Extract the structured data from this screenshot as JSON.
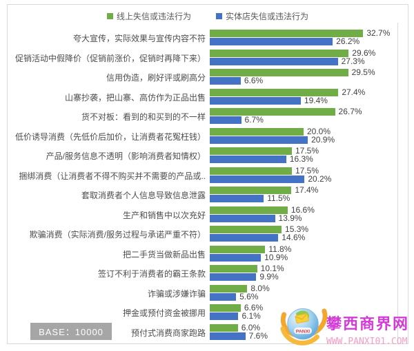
{
  "legend": [
    {
      "label": "线上失信或违法行为",
      "color": "#70AD47"
    },
    {
      "label": "实体店失信或违法行为",
      "color": "#4472C4"
    }
  ],
  "base_badge": "BASE：10000",
  "watermark": {
    "site_name": "攀西商界网",
    "url": "WWW.PANXI01.COM",
    "logo_text": "PANXI",
    "site_name_color": "#d43ad8",
    "url_color": "#f59ec5"
  },
  "chart_data": {
    "type": "bar",
    "orientation": "horizontal",
    "title": "",
    "xlabel": "",
    "ylabel": "",
    "xlim": [
      0,
      40
    ],
    "grid": "right-edge-only",
    "legend_position": "top",
    "value_suffix": "%",
    "categories": [
      "夸大宣传，实际效果与宣传内容不符",
      "促销活动中假降价（促销前涨价，促销时再降下来）",
      "信用伪造，刷好评或刷高分",
      "山寨抄袭，把山寨、高仿作为正品出售",
      "货不对板：看到的和买到的不一样",
      "低价诱导消费（先低价后加价，让消费者花冤枉钱）",
      "产品/服务信息不透明（影响消费者知情权）",
      "捆绑消费（让消费者不得不购买并不需要的产品或..",
      "套取消费者个人信息导致信息泄露",
      "生产和销售中以次充好",
      "欺骗消费（实际消费/服务过程与承诺严重不符）",
      "把二手货当做新品出售",
      "签订不利于消费者的霸王条款",
      "诈骗或涉嫌诈骗",
      "押金或预付资金被挪用",
      "预付式消费商家跑路"
    ],
    "series": [
      {
        "name": "线上失信或违法行为",
        "color": "#70AD47",
        "values": [
          32.7,
          29.6,
          29.5,
          27.4,
          26.7,
          20.0,
          17.5,
          17.5,
          17.4,
          16.6,
          15.3,
          11.8,
          10.1,
          8.0,
          6.6,
          6.0
        ]
      },
      {
        "name": "实体店失信或违法行为",
        "color": "#4472C4",
        "values": [
          26.2,
          27.3,
          6.6,
          19.4,
          6.7,
          20.9,
          16.3,
          20.2,
          11.5,
          13.9,
          14.6,
          10.9,
          9.9,
          5.6,
          6.1,
          7.6
        ]
      }
    ]
  }
}
